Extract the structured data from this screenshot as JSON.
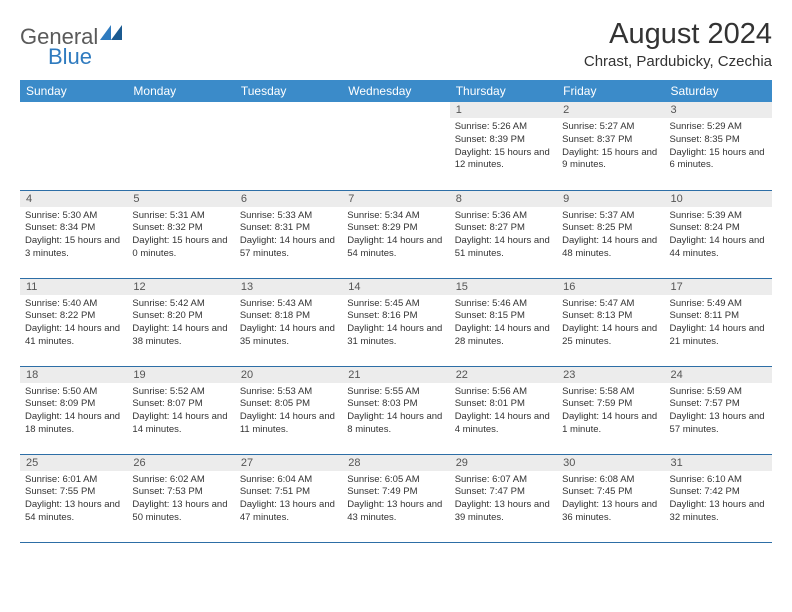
{
  "logo": {
    "text1": "General",
    "text2": "Blue"
  },
  "title": "August 2024",
  "location": "Chrast, Pardubicky, Czechia",
  "colors": {
    "header_bg": "#3b8bc9",
    "header_text": "#ffffff",
    "row_divider": "#2d6ea6",
    "daynum_bg": "#ececec",
    "text": "#333333",
    "logo_gray": "#5a5a5a",
    "logo_blue": "#2f7bbf"
  },
  "weekdays": [
    "Sunday",
    "Monday",
    "Tuesday",
    "Wednesday",
    "Thursday",
    "Friday",
    "Saturday"
  ],
  "weeks": [
    [
      null,
      null,
      null,
      null,
      {
        "d": "1",
        "sr": "5:26 AM",
        "ss": "8:39 PM",
        "dl": "15 hours and 12 minutes."
      },
      {
        "d": "2",
        "sr": "5:27 AM",
        "ss": "8:37 PM",
        "dl": "15 hours and 9 minutes."
      },
      {
        "d": "3",
        "sr": "5:29 AM",
        "ss": "8:35 PM",
        "dl": "15 hours and 6 minutes."
      }
    ],
    [
      {
        "d": "4",
        "sr": "5:30 AM",
        "ss": "8:34 PM",
        "dl": "15 hours and 3 minutes."
      },
      {
        "d": "5",
        "sr": "5:31 AM",
        "ss": "8:32 PM",
        "dl": "15 hours and 0 minutes."
      },
      {
        "d": "6",
        "sr": "5:33 AM",
        "ss": "8:31 PM",
        "dl": "14 hours and 57 minutes."
      },
      {
        "d": "7",
        "sr": "5:34 AM",
        "ss": "8:29 PM",
        "dl": "14 hours and 54 minutes."
      },
      {
        "d": "8",
        "sr": "5:36 AM",
        "ss": "8:27 PM",
        "dl": "14 hours and 51 minutes."
      },
      {
        "d": "9",
        "sr": "5:37 AM",
        "ss": "8:25 PM",
        "dl": "14 hours and 48 minutes."
      },
      {
        "d": "10",
        "sr": "5:39 AM",
        "ss": "8:24 PM",
        "dl": "14 hours and 44 minutes."
      }
    ],
    [
      {
        "d": "11",
        "sr": "5:40 AM",
        "ss": "8:22 PM",
        "dl": "14 hours and 41 minutes."
      },
      {
        "d": "12",
        "sr": "5:42 AM",
        "ss": "8:20 PM",
        "dl": "14 hours and 38 minutes."
      },
      {
        "d": "13",
        "sr": "5:43 AM",
        "ss": "8:18 PM",
        "dl": "14 hours and 35 minutes."
      },
      {
        "d": "14",
        "sr": "5:45 AM",
        "ss": "8:16 PM",
        "dl": "14 hours and 31 minutes."
      },
      {
        "d": "15",
        "sr": "5:46 AM",
        "ss": "8:15 PM",
        "dl": "14 hours and 28 minutes."
      },
      {
        "d": "16",
        "sr": "5:47 AM",
        "ss": "8:13 PM",
        "dl": "14 hours and 25 minutes."
      },
      {
        "d": "17",
        "sr": "5:49 AM",
        "ss": "8:11 PM",
        "dl": "14 hours and 21 minutes."
      }
    ],
    [
      {
        "d": "18",
        "sr": "5:50 AM",
        "ss": "8:09 PM",
        "dl": "14 hours and 18 minutes."
      },
      {
        "d": "19",
        "sr": "5:52 AM",
        "ss": "8:07 PM",
        "dl": "14 hours and 14 minutes."
      },
      {
        "d": "20",
        "sr": "5:53 AM",
        "ss": "8:05 PM",
        "dl": "14 hours and 11 minutes."
      },
      {
        "d": "21",
        "sr": "5:55 AM",
        "ss": "8:03 PM",
        "dl": "14 hours and 8 minutes."
      },
      {
        "d": "22",
        "sr": "5:56 AM",
        "ss": "8:01 PM",
        "dl": "14 hours and 4 minutes."
      },
      {
        "d": "23",
        "sr": "5:58 AM",
        "ss": "7:59 PM",
        "dl": "14 hours and 1 minute."
      },
      {
        "d": "24",
        "sr": "5:59 AM",
        "ss": "7:57 PM",
        "dl": "13 hours and 57 minutes."
      }
    ],
    [
      {
        "d": "25",
        "sr": "6:01 AM",
        "ss": "7:55 PM",
        "dl": "13 hours and 54 minutes."
      },
      {
        "d": "26",
        "sr": "6:02 AM",
        "ss": "7:53 PM",
        "dl": "13 hours and 50 minutes."
      },
      {
        "d": "27",
        "sr": "6:04 AM",
        "ss": "7:51 PM",
        "dl": "13 hours and 47 minutes."
      },
      {
        "d": "28",
        "sr": "6:05 AM",
        "ss": "7:49 PM",
        "dl": "13 hours and 43 minutes."
      },
      {
        "d": "29",
        "sr": "6:07 AM",
        "ss": "7:47 PM",
        "dl": "13 hours and 39 minutes."
      },
      {
        "d": "30",
        "sr": "6:08 AM",
        "ss": "7:45 PM",
        "dl": "13 hours and 36 minutes."
      },
      {
        "d": "31",
        "sr": "6:10 AM",
        "ss": "7:42 PM",
        "dl": "13 hours and 32 minutes."
      }
    ]
  ],
  "labels": {
    "sunrise": "Sunrise:",
    "sunset": "Sunset:",
    "daylight": "Daylight:"
  }
}
